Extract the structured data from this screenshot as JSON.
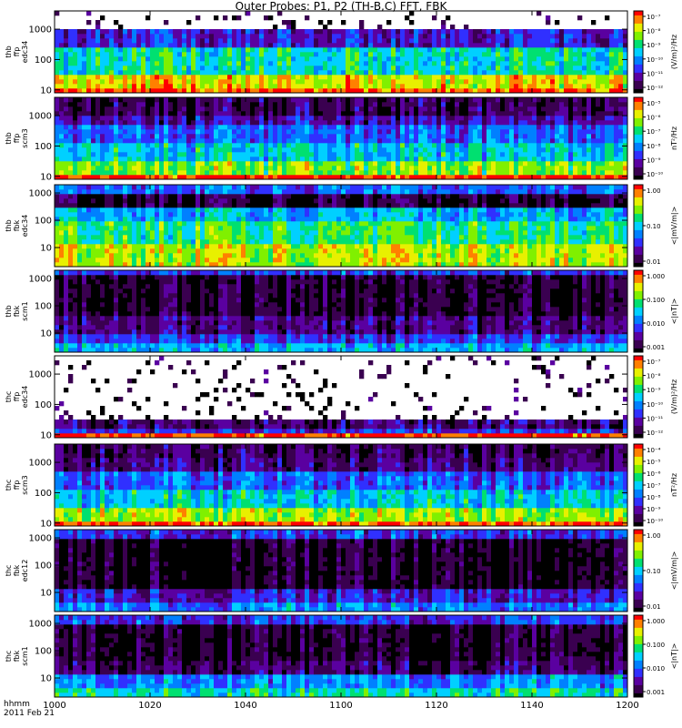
{
  "title": "Outer Probes: P1, P2 (TH-B,C) FFT, FBK",
  "time_label": "hhmm",
  "date_label": "2011 Feb 21",
  "colors": {
    "colormap": [
      "#000000",
      "#3a0050",
      "#5a00a0",
      "#3030ff",
      "#0080ff",
      "#00d0ff",
      "#00e070",
      "#80f000",
      "#e8f000",
      "#ff8000",
      "#ff0000"
    ]
  },
  "chart_data": {
    "type": "heatmap",
    "x_axis": {
      "label": "hhmm",
      "range": [
        "1000",
        "1200"
      ],
      "tick_labels": [
        "1000",
        "1020",
        "1040",
        "1100",
        "1120",
        "1140",
        "1200"
      ]
    },
    "panels": [
      {
        "ylabel": [
          "thb",
          "ffp",
          "edc34"
        ],
        "y_ticks": [
          "10",
          "100",
          "1000"
        ],
        "y_scale": "log",
        "ylim": [
          8,
          4000
        ],
        "colorbar_unit": "(V/m)²/Hz",
        "colorbar_ticks": [
          "10⁻⁷",
          "10⁻⁸",
          "10⁻⁹",
          "10⁻¹⁰",
          "10⁻¹¹",
          "10⁻¹²"
        ],
        "colorbar_range": [
          1e-12,
          1e-07
        ]
      },
      {
        "ylabel": [
          "thb",
          "ffp",
          "scm3"
        ],
        "y_ticks": [
          "10",
          "100",
          "1000"
        ],
        "y_scale": "log",
        "ylim": [
          8,
          4000
        ],
        "colorbar_unit": "nT²/Hz",
        "colorbar_ticks": [
          "10⁻⁵",
          "10⁻⁶",
          "10⁻⁷",
          "10⁻⁸",
          "10⁻⁹",
          "10⁻¹⁰"
        ],
        "colorbar_range": [
          1e-10,
          1e-05
        ]
      },
      {
        "ylabel": [
          "thb",
          "fbk",
          "edc34"
        ],
        "y_ticks": [
          "10",
          "100",
          "1000"
        ],
        "y_scale": "log",
        "ylim": [
          2,
          2000
        ],
        "colorbar_unit": "<|mV/m|>",
        "colorbar_ticks": [
          "1.00",
          "0.10",
          "0.01"
        ],
        "colorbar_range": [
          0.005,
          1.4
        ]
      },
      {
        "ylabel": [
          "thb",
          "fbk",
          "scm1"
        ],
        "y_ticks": [
          "10",
          "100",
          "1000"
        ],
        "y_scale": "log",
        "ylim": [
          2,
          2000
        ],
        "colorbar_unit": "<|nT|>",
        "colorbar_ticks": [
          "1.000",
          "0.100",
          "0.010",
          "0.001"
        ],
        "colorbar_range": [
          0.001,
          1.0
        ]
      },
      {
        "ylabel": [
          "thc",
          "ffp",
          "edc34"
        ],
        "y_ticks": [
          "10",
          "100",
          "1000"
        ],
        "y_scale": "log",
        "ylim": [
          8,
          4000
        ],
        "colorbar_unit": "(V/m)²/Hz",
        "colorbar_ticks": [
          "10⁻⁷",
          "10⁻⁸",
          "10⁻⁹",
          "10⁻¹⁰",
          "10⁻¹¹",
          "10⁻¹²"
        ],
        "colorbar_range": [
          1e-12,
          1e-07
        ]
      },
      {
        "ylabel": [
          "thc",
          "ffp",
          "scm3"
        ],
        "y_ticks": [
          "10",
          "100",
          "1000"
        ],
        "y_scale": "log",
        "ylim": [
          8,
          4000
        ],
        "colorbar_unit": "nT²/Hz",
        "colorbar_ticks": [
          "10⁻⁴",
          "10⁻⁵",
          "10⁻⁶",
          "10⁻⁷",
          "10⁻⁸",
          "10⁻⁹",
          "10⁻¹⁰"
        ],
        "colorbar_range": [
          1e-10,
          0.0001
        ]
      },
      {
        "ylabel": [
          "thc",
          "fbk",
          "edc12"
        ],
        "y_ticks": [
          "10",
          "100",
          "1000"
        ],
        "y_scale": "log",
        "ylim": [
          2,
          2000
        ],
        "colorbar_unit": "<|mV/m|>",
        "colorbar_ticks": [
          "1.00",
          "0.10",
          "0.01"
        ],
        "colorbar_range": [
          0.005,
          1.4
        ]
      },
      {
        "ylabel": [
          "thc",
          "fbk",
          "scm1"
        ],
        "y_ticks": [
          "10",
          "100",
          "1000"
        ],
        "y_scale": "log",
        "ylim": [
          2,
          2000
        ],
        "colorbar_unit": "<|nT|>",
        "colorbar_ticks": [
          "1.000",
          "0.100",
          "0.010",
          "0.001"
        ],
        "colorbar_range": [
          0.001,
          1.0
        ]
      }
    ]
  }
}
